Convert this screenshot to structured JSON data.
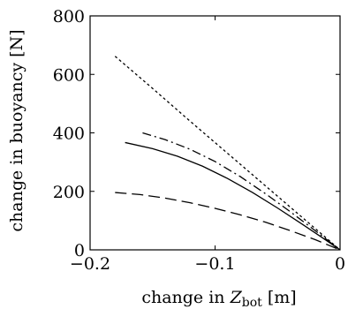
{
  "chart_data": {
    "type": "line",
    "title": "",
    "xlabel": "change in Z_bot [m]",
    "xlabel_parts": {
      "prefix": "change in ",
      "symbol": "Z",
      "subscript": "bot",
      "unit": " [m]"
    },
    "ylabel": "change in buoyancy [N]",
    "xlim": [
      -0.2,
      0
    ],
    "ylim": [
      0,
      800
    ],
    "x_ticks": [
      -0.2,
      -0.1,
      0
    ],
    "x_tick_labels": [
      "−0.2",
      "−0.1",
      "0"
    ],
    "y_ticks": [
      0,
      200,
      400,
      600,
      800
    ],
    "y_tick_labels": [
      "0",
      "200",
      "400",
      "600",
      "800"
    ],
    "grid": false,
    "legend": "none",
    "series": [
      {
        "style": "dotted",
        "color": "#000000",
        "points": [
          [
            -0.18,
            662
          ],
          [
            -0.15,
            552
          ],
          [
            -0.12,
            440
          ],
          [
            -0.09,
            330
          ],
          [
            -0.06,
            220
          ],
          [
            -0.03,
            110
          ],
          [
            0.0,
            0
          ]
        ]
      },
      {
        "style": "dash-dot",
        "color": "#000000",
        "points": [
          [
            -0.158,
            400
          ],
          [
            -0.14,
            377
          ],
          [
            -0.12,
            344
          ],
          [
            -0.1,
            302
          ],
          [
            -0.08,
            251
          ],
          [
            -0.06,
            193
          ],
          [
            -0.04,
            131
          ],
          [
            -0.02,
            66
          ],
          [
            0.0,
            0
          ]
        ]
      },
      {
        "style": "solid",
        "color": "#000000",
        "points": [
          [
            -0.172,
            367
          ],
          [
            -0.15,
            346
          ],
          [
            -0.13,
            320
          ],
          [
            -0.11,
            286
          ],
          [
            -0.09,
            244
          ],
          [
            -0.07,
            196
          ],
          [
            -0.05,
            143
          ],
          [
            -0.03,
            87
          ],
          [
            -0.015,
            44
          ],
          [
            0.0,
            0
          ]
        ]
      },
      {
        "style": "dashed",
        "color": "#000000",
        "points": [
          [
            -0.18,
            196
          ],
          [
            -0.16,
            189
          ],
          [
            -0.14,
            177
          ],
          [
            -0.12,
            161
          ],
          [
            -0.1,
            142
          ],
          [
            -0.08,
            120
          ],
          [
            -0.06,
            95
          ],
          [
            -0.04,
            66
          ],
          [
            -0.02,
            35
          ],
          [
            0.0,
            0
          ]
        ]
      }
    ]
  }
}
